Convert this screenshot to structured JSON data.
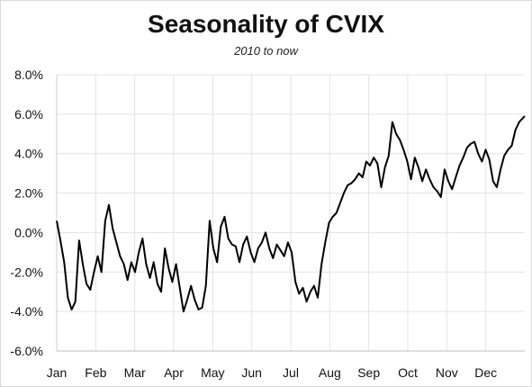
{
  "chart_data": {
    "type": "line",
    "title": "Seasonality of CVIX",
    "subtitle": "2010 to now",
    "xlabel": "",
    "ylabel": "",
    "x_tick_labels": [
      "Jan",
      "Feb",
      "Mar",
      "Apr",
      "May",
      "Jun",
      "Jul",
      "Aug",
      "Sep",
      "Oct",
      "Nov",
      "Dec"
    ],
    "y_tick_labels": [
      "8.0%",
      "6.0%",
      "4.0%",
      "2.0%",
      "0.0%",
      "-2.0%",
      "-4.0%",
      "-6.0%"
    ],
    "y_ticks": [
      8,
      6,
      4,
      2,
      0,
      -2,
      -4,
      -6
    ],
    "ylim": [
      -6,
      8
    ],
    "xlim": [
      1,
      252
    ],
    "grid": true,
    "line_color": "#000000",
    "grid_color": "#e3e3e3",
    "series": [
      {
        "x": [
          1,
          3,
          5,
          7,
          9,
          11,
          13,
          15,
          17,
          19,
          21,
          23,
          25,
          27,
          29,
          31,
          33,
          35,
          37,
          39,
          41,
          43,
          45,
          47,
          49,
          51,
          53,
          55,
          57,
          59,
          61,
          63,
          65,
          67,
          69,
          71,
          73,
          75,
          77,
          79,
          81,
          83,
          85,
          87,
          89,
          91,
          93,
          95,
          97,
          99,
          101,
          103,
          105,
          107,
          109,
          111,
          113,
          115,
          117,
          119,
          121,
          123,
          125,
          127,
          129,
          131,
          133,
          135,
          137,
          139,
          141,
          143,
          145,
          147,
          149,
          151,
          153,
          155,
          157,
          159,
          161,
          163,
          165,
          167,
          169,
          171,
          173,
          175,
          177,
          179,
          181,
          183,
          185,
          187,
          189,
          191,
          193,
          195,
          197,
          199,
          201,
          203,
          205,
          207,
          209,
          211,
          213,
          215,
          217,
          219,
          221,
          223,
          225,
          227,
          229,
          231,
          233,
          235,
          237,
          239,
          241,
          243,
          245,
          247,
          249,
          251,
          252
        ],
        "y": [
          0.6,
          -0.4,
          -1.5,
          -3.3,
          -3.9,
          -3.5,
          -0.4,
          -1.6,
          -2.6,
          -2.9,
          -2.0,
          -1.2,
          -2.0,
          0.6,
          1.4,
          0.2,
          -0.5,
          -1.2,
          -1.6,
          -2.4,
          -1.5,
          -2.0,
          -1.0,
          -0.3,
          -1.6,
          -2.3,
          -1.5,
          -2.6,
          -3.0,
          -0.8,
          -1.8,
          -2.5,
          -1.6,
          -2.8,
          -4.0,
          -3.4,
          -2.7,
          -3.4,
          -3.9,
          -3.8,
          -2.7,
          0.6,
          -0.8,
          -1.5,
          0.3,
          0.8,
          -0.3,
          -0.6,
          -0.7,
          -1.5,
          -0.6,
          -0.2,
          -1.0,
          -1.5,
          -0.8,
          -0.5,
          0.0,
          -0.8,
          -1.3,
          -0.6,
          -0.9,
          -1.2,
          -0.5,
          -1.0,
          -2.5,
          -3.1,
          -2.8,
          -3.5,
          -3.0,
          -2.7,
          -3.3,
          -1.6,
          -0.5,
          0.5,
          0.8,
          1.0,
          1.5,
          2.0,
          2.4,
          2.5,
          2.7,
          3.0,
          2.8,
          3.6,
          3.4,
          3.8,
          3.5,
          2.3,
          3.3,
          3.9,
          5.6,
          5.0,
          4.7,
          4.2,
          3.6,
          2.7,
          3.8,
          3.3,
          2.6,
          3.2,
          2.7,
          2.3,
          2.1,
          1.8,
          3.2,
          2.6,
          2.2,
          2.8,
          3.4,
          3.8,
          4.3,
          4.5,
          4.6,
          4.0,
          3.6,
          4.2,
          3.7,
          2.6,
          2.3,
          3.2,
          3.9,
          4.2,
          4.4,
          5.2,
          5.6,
          5.8,
          5.9
        ],
        "name": ""
      }
    ]
  }
}
